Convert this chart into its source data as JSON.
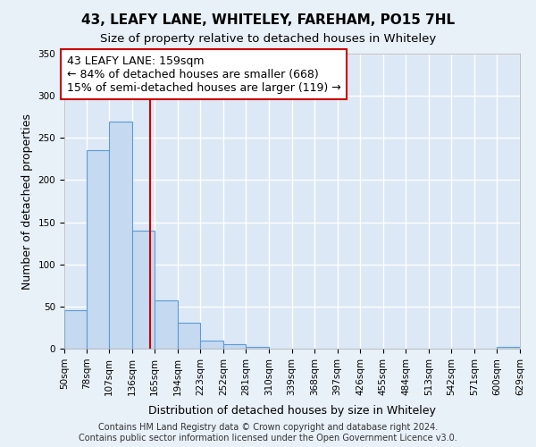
{
  "title": "43, LEAFY LANE, WHITELEY, FAREHAM, PO15 7HL",
  "subtitle": "Size of property relative to detached houses in Whiteley",
  "xlabel": "Distribution of detached houses by size in Whiteley",
  "ylabel": "Number of detached properties",
  "bin_edges": [
    50,
    78,
    107,
    136,
    165,
    194,
    223,
    252,
    281,
    310,
    339,
    368,
    397,
    426,
    455,
    484,
    513,
    542,
    571,
    600,
    629
  ],
  "bar_heights": [
    46,
    235,
    269,
    140,
    57,
    31,
    10,
    5,
    2,
    0,
    0,
    0,
    0,
    0,
    0,
    0,
    0,
    0,
    0,
    2
  ],
  "bar_color": "#c5d9f0",
  "bar_edge_color": "#5b9bd5",
  "property_line_x": 159,
  "property_line_color": "#cc0000",
  "annotation_line1": "43 LEAFY LANE: 159sqm",
  "annotation_line2": "← 84% of detached houses are smaller (668)",
  "annotation_line3": "15% of semi-detached houses are larger (119) →",
  "annotation_box_color": "#cc0000",
  "ylim": [
    0,
    350
  ],
  "tick_labels": [
    "50sqm",
    "78sqm",
    "107sqm",
    "136sqm",
    "165sqm",
    "194sqm",
    "223sqm",
    "252sqm",
    "281sqm",
    "310sqm",
    "339sqm",
    "368sqm",
    "397sqm",
    "426sqm",
    "455sqm",
    "484sqm",
    "513sqm",
    "542sqm",
    "571sqm",
    "600sqm",
    "629sqm"
  ],
  "footer_line1": "Contains HM Land Registry data © Crown copyright and database right 2024.",
  "footer_line2": "Contains public sector information licensed under the Open Government Licence v3.0.",
  "background_color": "#e8f0f8",
  "plot_background_color": "#dce8f5",
  "grid_color": "#ffffff",
  "title_fontsize": 11,
  "subtitle_fontsize": 9.5,
  "axis_label_fontsize": 9,
  "tick_fontsize": 7.5,
  "footer_fontsize": 7,
  "annotation_fontsize": 9
}
